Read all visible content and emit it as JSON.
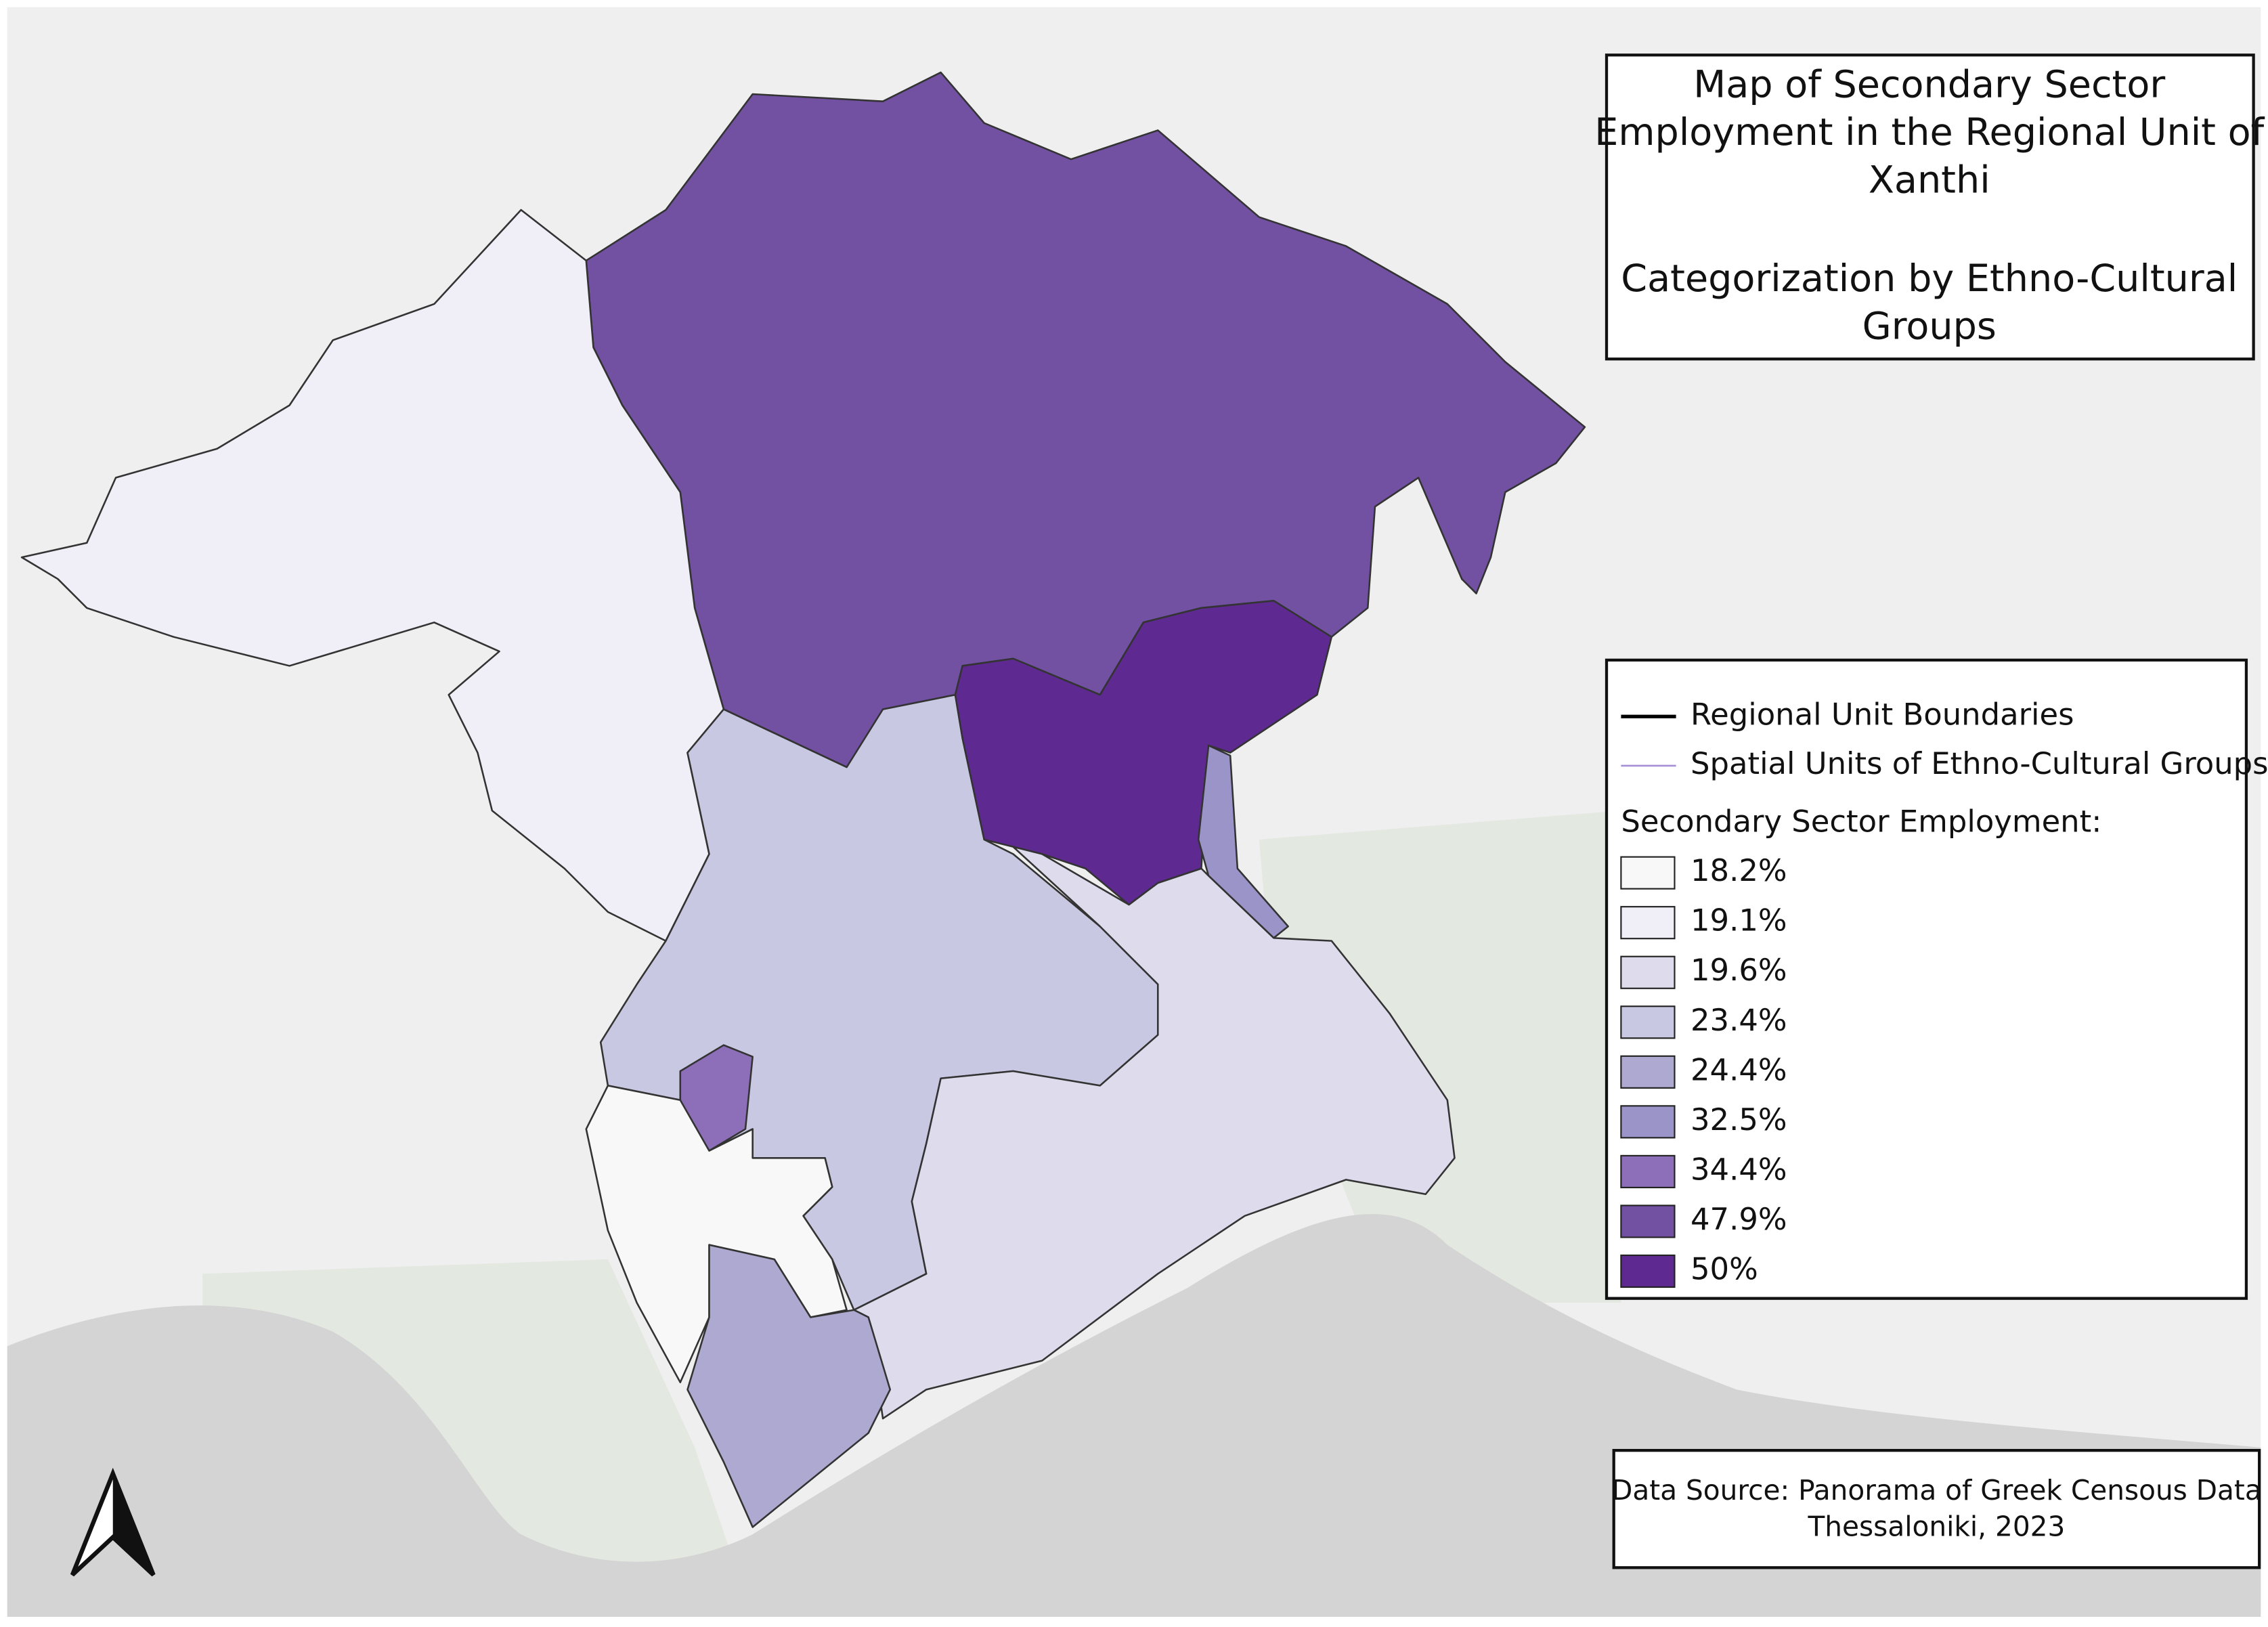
{
  "title_box": {
    "title_lines": [
      "Map of Secondary Sector",
      "Employment in the Regional Unit of",
      "Xanthi"
    ],
    "subtitle_lines": [
      "Categorization by Ethno-Cultural",
      "Groups"
    ]
  },
  "legend": {
    "items": [
      {
        "label": "Regional Unit Boundaries",
        "color": "#000000"
      },
      {
        "label": "Spatial Units of Ethno-Cultural Groups",
        "color": "#a58fd6"
      }
    ],
    "heading": "Secondary Sector Employment:",
    "classes": [
      {
        "value": 18.2,
        "label": "18.2%",
        "color": "#f7f8f7"
      },
      {
        "value": 19.1,
        "label": "19.1%",
        "color": "#f0eef7"
      },
      {
        "value": 19.6,
        "label": "19.6%",
        "color": "#dedcec"
      },
      {
        "value": 23.4,
        "label": "23.4%",
        "color": "#c9c8e2"
      },
      {
        "value": 24.4,
        "label": "24.4%",
        "color": "#ada9d0"
      },
      {
        "value": 32.5,
        "label": "32.5%",
        "color": "#9b94c9"
      },
      {
        "value": 34.4,
        "label": "34.4%",
        "color": "#8c6fb8"
      },
      {
        "value": 47.9,
        "label": "47.9%",
        "color": "#7251a3"
      },
      {
        "value": 50,
        "label": "50%",
        "color": "#5e2a91"
      }
    ]
  },
  "regions": [
    {
      "value": 47.9
    },
    {
      "value": 19.1
    },
    {
      "value": 23.4
    },
    {
      "value": 50
    },
    {
      "value": 32.5
    },
    {
      "value": 19.6
    },
    {
      "value": 34.4
    },
    {
      "value": 18.2
    },
    {
      "value": 24.4
    }
  ],
  "source": {
    "lines": [
      "Data Source: Panorama of Greek Censous Data",
      "Thessaloniki, 2023"
    ]
  }
}
